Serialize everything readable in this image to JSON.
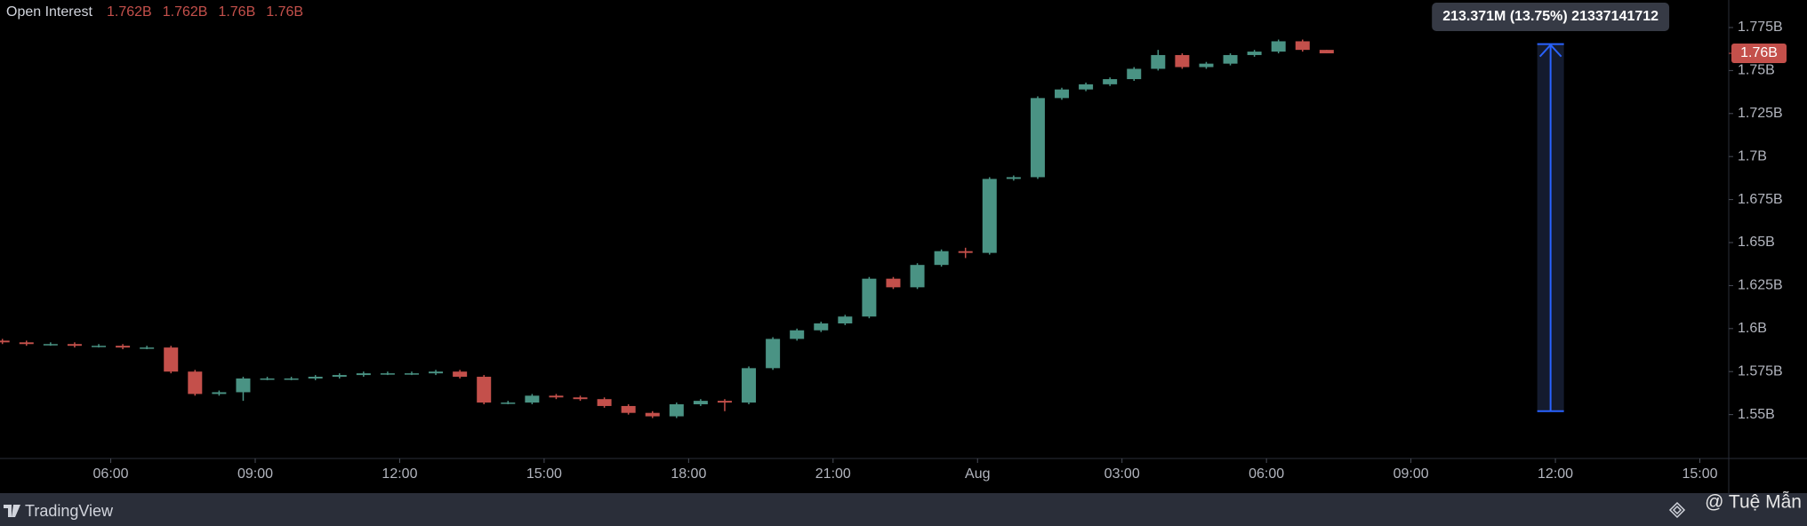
{
  "chart_data": {
    "type": "candlestick",
    "title": "Open Interest",
    "header_values": [
      "1.762B",
      "1.762B",
      "1.76B",
      "1.76B"
    ],
    "up_color": "#4a9384",
    "down_color": "#c4504b",
    "x": [
      3.75,
      4.25,
      4.75,
      5.25,
      5.75,
      6.25,
      6.75,
      7.25,
      7.75,
      8.25,
      8.75,
      9.25,
      9.75,
      10.25,
      10.75,
      11.25,
      11.75,
      12.25,
      12.75,
      13.25,
      13.75,
      14.25,
      14.75,
      15.25,
      15.75,
      16.25,
      16.75,
      17.25,
      17.75,
      18.25,
      18.75,
      19.25,
      19.75,
      20.25,
      20.75,
      21.25,
      21.75,
      22.25,
      22.75,
      23.25,
      23.75,
      24.25,
      24.75,
      25.25,
      25.75,
      26.25,
      26.75,
      27.25,
      27.75,
      28.25,
      28.75,
      29.25,
      29.75,
      30.25,
      30.75,
      31.25
    ],
    "open": [
      1.593,
      1.592,
      1.591,
      1.591,
      1.59,
      1.59,
      1.589,
      1.589,
      1.575,
      1.562,
      1.563,
      1.571,
      1.571,
      1.571,
      1.572,
      1.573,
      1.574,
      1.574,
      1.574,
      1.575,
      1.572,
      1.557,
      1.557,
      1.561,
      1.56,
      1.559,
      1.555,
      1.551,
      1.549,
      1.556,
      1.558,
      1.557,
      1.577,
      1.594,
      1.599,
      1.603,
      1.607,
      1.629,
      1.624,
      1.637,
      1.645,
      1.644,
      1.687,
      1.688,
      1.734,
      1.739,
      1.742,
      1.745,
      1.751,
      1.759,
      1.752,
      1.754,
      1.759,
      1.761,
      1.767,
      1.762
    ],
    "high": [
      1.594,
      1.593,
      1.592,
      1.592,
      1.591,
      1.591,
      1.59,
      1.59,
      1.576,
      1.564,
      1.572,
      1.572,
      1.572,
      1.573,
      1.574,
      1.575,
      1.575,
      1.575,
      1.576,
      1.576,
      1.573,
      1.558,
      1.562,
      1.562,
      1.561,
      1.56,
      1.556,
      1.552,
      1.557,
      1.559,
      1.559,
      1.578,
      1.595,
      1.6,
      1.604,
      1.608,
      1.63,
      1.63,
      1.638,
      1.646,
      1.647,
      1.688,
      1.689,
      1.735,
      1.74,
      1.743,
      1.746,
      1.752,
      1.762,
      1.76,
      1.755,
      1.76,
      1.762,
      1.768,
      1.768,
      1.762
    ],
    "low": [
      1.591,
      1.59,
      1.59,
      1.589,
      1.589,
      1.588,
      1.588,
      1.574,
      1.561,
      1.561,
      1.558,
      1.57,
      1.57,
      1.57,
      1.571,
      1.572,
      1.573,
      1.573,
      1.573,
      1.571,
      1.556,
      1.556,
      1.556,
      1.559,
      1.558,
      1.554,
      1.55,
      1.548,
      1.548,
      1.555,
      1.552,
      1.556,
      1.576,
      1.593,
      1.598,
      1.602,
      1.606,
      1.623,
      1.623,
      1.636,
      1.641,
      1.643,
      1.686,
      1.687,
      1.733,
      1.738,
      1.741,
      1.744,
      1.75,
      1.751,
      1.751,
      1.753,
      1.758,
      1.76,
      1.761,
      1.76
    ],
    "close": [
      1.592,
      1.591,
      1.591,
      1.59,
      1.59,
      1.589,
      1.589,
      1.575,
      1.562,
      1.563,
      1.571,
      1.571,
      1.571,
      1.572,
      1.573,
      1.574,
      1.574,
      1.574,
      1.575,
      1.572,
      1.557,
      1.557,
      1.561,
      1.56,
      1.559,
      1.555,
      1.551,
      1.549,
      1.556,
      1.558,
      1.557,
      1.577,
      1.594,
      1.599,
      1.603,
      1.607,
      1.629,
      1.624,
      1.637,
      1.645,
      1.644,
      1.687,
      1.688,
      1.734,
      1.739,
      1.742,
      1.745,
      1.751,
      1.759,
      1.752,
      1.754,
      1.759,
      1.761,
      1.767,
      1.762,
      1.76
    ],
    "xlim": [
      3.7,
      39.6
    ],
    "xticks": [
      {
        "value": 6,
        "label": "06:00"
      },
      {
        "value": 9,
        "label": "09:00"
      },
      {
        "value": 12,
        "label": "12:00"
      },
      {
        "value": 15,
        "label": "15:00"
      },
      {
        "value": 18,
        "label": "18:00"
      },
      {
        "value": 21,
        "label": "21:00"
      },
      {
        "value": 24,
        "label": "Aug"
      },
      {
        "value": 27,
        "label": "03:00"
      },
      {
        "value": 30,
        "label": "06:00"
      },
      {
        "value": 33,
        "label": "09:00"
      },
      {
        "value": 36,
        "label": "12:00"
      },
      {
        "value": 39,
        "label": "15:00"
      }
    ],
    "ylim": [
      1.5245,
      1.791
    ],
    "yticks": [
      {
        "value": 1.55,
        "label": "1.55B"
      },
      {
        "value": 1.575,
        "label": "1.575B"
      },
      {
        "value": 1.6,
        "label": "1.6B"
      },
      {
        "value": 1.625,
        "label": "1.625B"
      },
      {
        "value": 1.65,
        "label": "1.65B"
      },
      {
        "value": 1.675,
        "label": "1.675B"
      },
      {
        "value": 1.7,
        "label": "1.7B"
      },
      {
        "value": 1.725,
        "label": "1.725B"
      },
      {
        "value": 1.75,
        "label": "1.75B"
      },
      {
        "value": 1.775,
        "label": "1.775B"
      }
    ],
    "last_price": {
      "value": 1.76,
      "label": "1.76B"
    },
    "measure": {
      "x": 35.9,
      "from": 1.552,
      "to": 1.765371,
      "label": "213.371M (13.75%) 21337141712"
    }
  },
  "footer": {
    "brand": "TradingView",
    "watermark": "@ Tuệ Mẫn"
  }
}
